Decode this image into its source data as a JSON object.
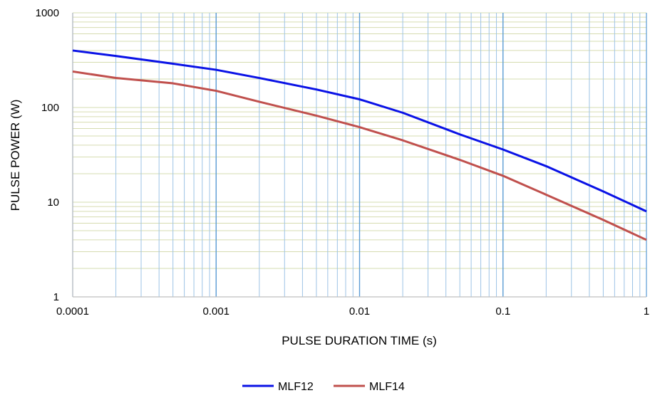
{
  "chart_data": {
    "type": "line",
    "xlabel": "PULSE DURATION TIME (s)",
    "ylabel": "PULSE POWER (W)",
    "xscale": "log",
    "yscale": "log",
    "xlim": [
      0.0001,
      1
    ],
    "ylim": [
      1,
      1000
    ],
    "x_tick_labels": [
      "0.0001",
      "0.001",
      "0.01",
      "0.1",
      "1"
    ],
    "y_tick_labels": [
      "1",
      "10",
      "100",
      "1000"
    ],
    "grid": true,
    "legend_position": "bottom",
    "x": [
      0.0001,
      0.0002,
      0.0005,
      0.001,
      0.002,
      0.005,
      0.01,
      0.02,
      0.05,
      0.1,
      0.2,
      0.5,
      1
    ],
    "series": [
      {
        "name": "MLF12",
        "color": "#0a12e6",
        "values": [
          400,
          350,
          290,
          250,
          205,
          155,
          122,
          88,
          52,
          36,
          24,
          13,
          8
        ]
      },
      {
        "name": "MLF14",
        "color": "#c0504d",
        "values": [
          240,
          205,
          180,
          150,
          115,
          82,
          62,
          45,
          28,
          19,
          12,
          6.5,
          4
        ]
      }
    ],
    "colors": {
      "major_grid_x": "#5b9bd5",
      "minor_grid_x": "#9dc3e6",
      "grid_y": "#d6dcb0",
      "axis": "#bfbfbf"
    }
  }
}
